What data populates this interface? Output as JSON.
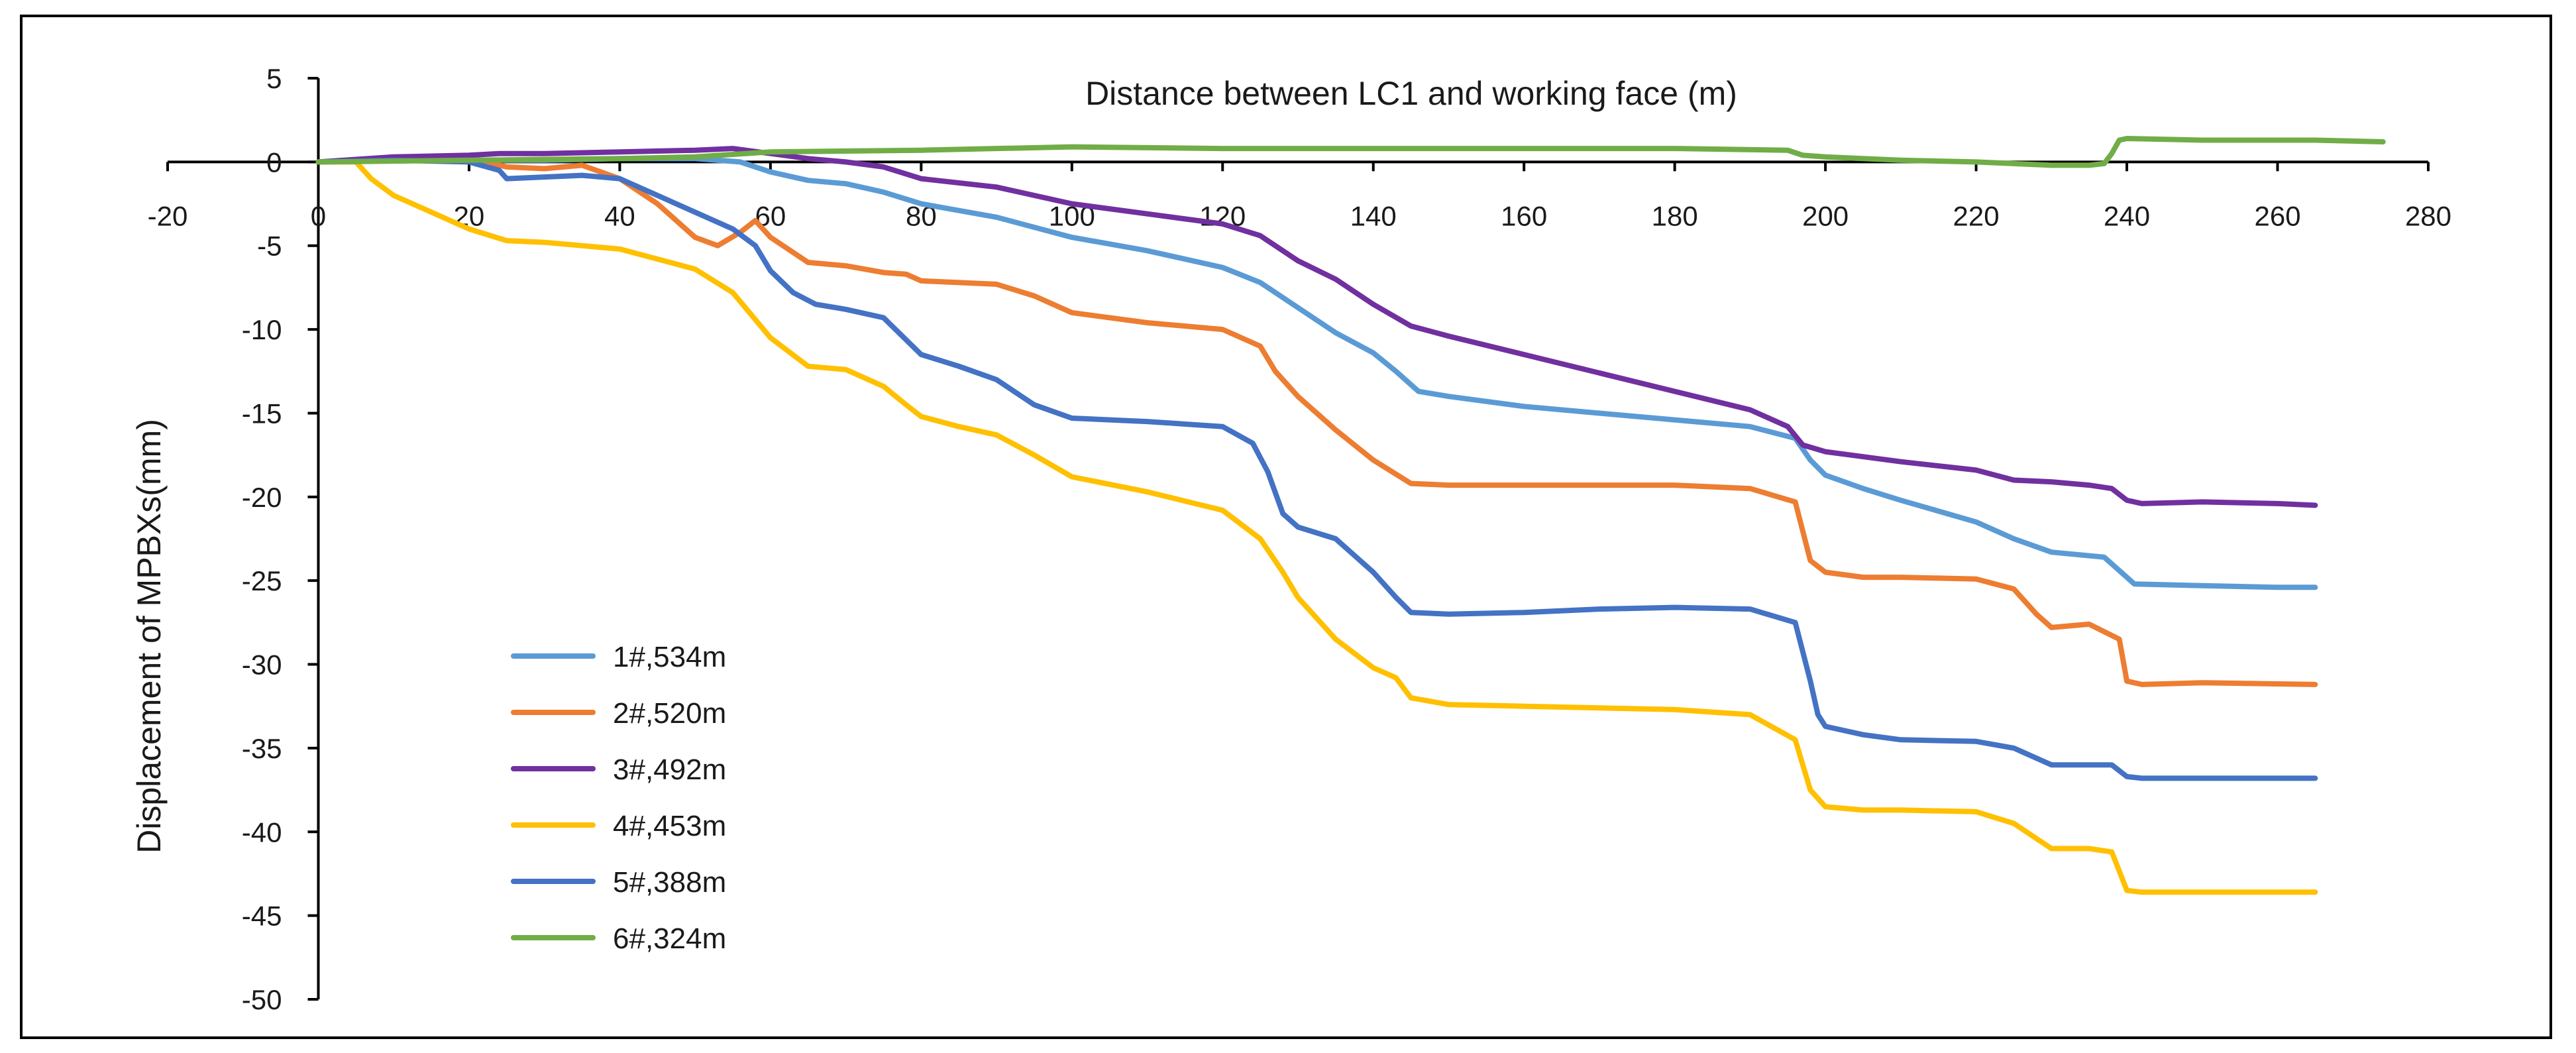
{
  "chart_data": {
    "type": "line",
    "title": "",
    "xlabel": "Distance between LC1 and working face (m)",
    "ylabel": "Displacement of MPBXs(mm)",
    "xlim": [
      -20,
      280
    ],
    "ylim": [
      -50,
      5
    ],
    "xticks": [
      -20,
      0,
      20,
      40,
      60,
      80,
      100,
      120,
      140,
      160,
      180,
      200,
      220,
      240,
      260,
      280
    ],
    "yticks": [
      5,
      0,
      -5,
      -10,
      -15,
      -20,
      -25,
      -30,
      -35,
      -40,
      -45,
      -50
    ],
    "grid": false,
    "legend_position": "lower-left",
    "series": [
      {
        "name": "1#,534m",
        "color": "#5B9BD5",
        "x": [
          0,
          10,
          20,
          30,
          40,
          50,
          56,
          60,
          65,
          70,
          75,
          80,
          90,
          100,
          110,
          120,
          125,
          130,
          135,
          140,
          143,
          146,
          150,
          160,
          170,
          180,
          190,
          196,
          198,
          200,
          205,
          210,
          220,
          225,
          230,
          237,
          239,
          241,
          250,
          260,
          265
        ],
        "y": [
          0,
          0.2,
          0.1,
          0.1,
          0.2,
          0.2,
          0,
          -0.6,
          -1.1,
          -1.3,
          -1.8,
          -2.5,
          -3.3,
          -4.5,
          -5.3,
          -6.3,
          -7.2,
          -8.7,
          -10.2,
          -11.4,
          -12.5,
          -13.7,
          -14.0,
          -14.6,
          -15.0,
          -15.4,
          -15.8,
          -16.5,
          -17.8,
          -18.7,
          -19.5,
          -20.2,
          -21.5,
          -22.5,
          -23.3,
          -23.6,
          -24.4,
          -25.2,
          -25.3,
          -25.4,
          -25.4
        ]
      },
      {
        "name": "2#,520m",
        "color": "#ED7D31",
        "x": [
          0,
          10,
          20,
          25,
          30,
          35,
          40,
          45,
          50,
          53,
          56,
          58,
          60,
          65,
          70,
          75,
          78,
          80,
          90,
          95,
          100,
          110,
          120,
          125,
          127,
          130,
          135,
          140,
          145,
          150,
          160,
          170,
          180,
          190,
          196,
          198,
          200,
          205,
          210,
          220,
          225,
          228,
          230,
          235,
          239,
          240,
          242,
          250,
          265
        ],
        "y": [
          0,
          0.2,
          0.2,
          -0.3,
          -0.4,
          -0.2,
          -1.0,
          -2.5,
          -4.5,
          -5.0,
          -4.2,
          -3.5,
          -4.5,
          -6.0,
          -6.2,
          -6.6,
          -6.7,
          -7.1,
          -7.3,
          -8.0,
          -9.0,
          -9.6,
          -10.0,
          -11.0,
          -12.5,
          -14.0,
          -16.0,
          -17.8,
          -19.2,
          -19.3,
          -19.3,
          -19.3,
          -19.3,
          -19.5,
          -20.3,
          -23.8,
          -24.5,
          -24.8,
          -24.8,
          -24.9,
          -25.5,
          -27.0,
          -27.8,
          -27.6,
          -28.5,
          -31.0,
          -31.2,
          -31.1,
          -31.2
        ]
      },
      {
        "name": "3#,492m",
        "color": "#7030A0",
        "x": [
          0,
          10,
          20,
          24,
          30,
          40,
          50,
          55,
          60,
          65,
          70,
          75,
          80,
          90,
          100,
          110,
          120,
          125,
          130,
          135,
          140,
          145,
          150,
          160,
          170,
          180,
          190,
          195,
          197,
          200,
          210,
          220,
          225,
          230,
          235,
          238,
          240,
          242,
          250,
          260,
          265
        ],
        "y": [
          0,
          0.3,
          0.4,
          0.5,
          0.5,
          0.6,
          0.7,
          0.8,
          0.5,
          0.2,
          0,
          -0.3,
          -1.0,
          -1.5,
          -2.5,
          -3.1,
          -3.7,
          -4.4,
          -5.9,
          -7.0,
          -8.5,
          -9.8,
          -10.4,
          -11.5,
          -12.6,
          -13.7,
          -14.8,
          -15.8,
          -16.9,
          -17.3,
          -17.9,
          -18.4,
          -19.0,
          -19.1,
          -19.3,
          -19.5,
          -20.2,
          -20.4,
          -20.3,
          -20.4,
          -20.5
        ]
      },
      {
        "name": "4#,453m",
        "color": "#FFC000",
        "x": [
          0,
          5,
          7,
          10,
          15,
          20,
          25,
          30,
          40,
          50,
          55,
          60,
          65,
          70,
          75,
          78,
          80,
          85,
          90,
          95,
          100,
          110,
          120,
          125,
          128,
          130,
          135,
          140,
          143,
          145,
          150,
          160,
          170,
          180,
          190,
          196,
          198,
          200,
          205,
          210,
          220,
          225,
          230,
          235,
          238,
          240,
          242,
          250,
          265
        ],
        "y": [
          0,
          0,
          -1.0,
          -2.0,
          -3.0,
          -4.0,
          -4.7,
          -4.8,
          -5.2,
          -6.4,
          -7.8,
          -10.5,
          -12.2,
          -12.4,
          -13.4,
          -14.5,
          -15.2,
          -15.8,
          -16.3,
          -17.5,
          -18.8,
          -19.7,
          -20.8,
          -22.5,
          -24.5,
          -26.0,
          -28.5,
          -30.2,
          -30.8,
          -32.0,
          -32.4,
          -32.5,
          -32.6,
          -32.7,
          -33.0,
          -34.5,
          -37.5,
          -38.5,
          -38.7,
          -38.7,
          -38.8,
          -39.5,
          -41.0,
          -41.0,
          -41.2,
          -43.5,
          -43.6,
          -43.6,
          -43.6
        ]
      },
      {
        "name": "5#,388m",
        "color": "#4472C4",
        "x": [
          0,
          10,
          20,
          24,
          25,
          30,
          35,
          40,
          45,
          50,
          55,
          58,
          60,
          63,
          66,
          70,
          75,
          80,
          85,
          90,
          95,
          100,
          110,
          120,
          124,
          126,
          128,
          130,
          135,
          140,
          143,
          145,
          150,
          160,
          170,
          180,
          190,
          196,
          198,
          199,
          200,
          205,
          210,
          220,
          225,
          230,
          235,
          238,
          240,
          242,
          250,
          260,
          265
        ],
        "y": [
          0,
          0.1,
          0,
          -0.5,
          -1.0,
          -0.9,
          -0.8,
          -1.0,
          -2.0,
          -3.0,
          -4.0,
          -5.0,
          -6.5,
          -7.8,
          -8.5,
          -8.8,
          -9.3,
          -11.5,
          -12.2,
          -13.0,
          -14.5,
          -15.3,
          -15.5,
          -15.8,
          -16.8,
          -18.5,
          -21.0,
          -21.8,
          -22.5,
          -24.5,
          -26.0,
          -26.9,
          -27.0,
          -26.9,
          -26.7,
          -26.6,
          -26.7,
          -27.5,
          -31.0,
          -33.0,
          -33.7,
          -34.2,
          -34.5,
          -34.6,
          -35.0,
          -36.0,
          -36.0,
          -36.0,
          -36.7,
          -36.8,
          -36.8,
          -36.8,
          -36.8
        ]
      },
      {
        "name": "6#,324m",
        "color": "#70AD47",
        "x": [
          0,
          20,
          40,
          50,
          60,
          80,
          100,
          120,
          140,
          160,
          180,
          195,
          197,
          200,
          210,
          220,
          225,
          230,
          235,
          237,
          238,
          239,
          240,
          250,
          265,
          274
        ],
        "y": [
          0,
          0.1,
          0.2,
          0.3,
          0.6,
          0.7,
          0.9,
          0.8,
          0.8,
          0.8,
          0.8,
          0.7,
          0.4,
          0.3,
          0.1,
          0.0,
          -0.1,
          -0.2,
          -0.2,
          -0.1,
          0.5,
          1.3,
          1.4,
          1.3,
          1.3,
          1.2
        ]
      }
    ]
  }
}
